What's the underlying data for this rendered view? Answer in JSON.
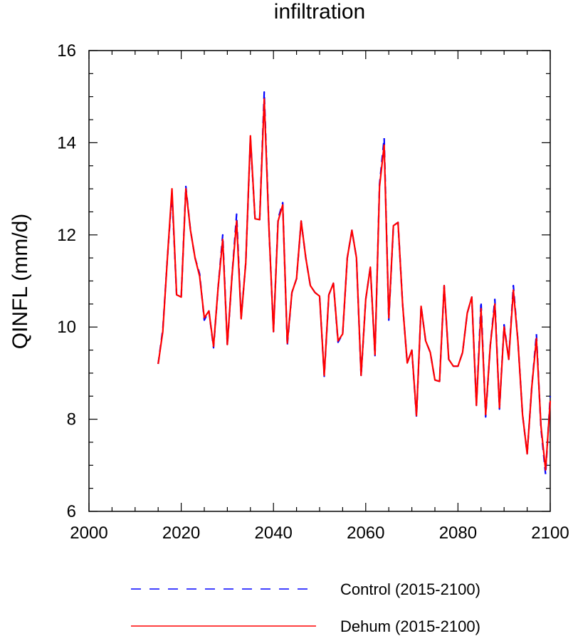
{
  "chart_data": {
    "type": "line",
    "title": "infiltration",
    "xlabel": "",
    "ylabel": "QINFL  (mm/d)",
    "xlim": [
      2000,
      2100
    ],
    "ylim": [
      6,
      16
    ],
    "x_ticks": [
      "2000",
      "2020",
      "2040",
      "2060",
      "2080",
      "2100"
    ],
    "y_ticks": [
      "6",
      "8",
      "10",
      "12",
      "14",
      "16"
    ],
    "x_tick_values": [
      2000,
      2020,
      2040,
      2060,
      2080,
      2100
    ],
    "y_tick_values": [
      6,
      8,
      10,
      12,
      14,
      16
    ],
    "grid": false,
    "legend_position": "bottom",
    "x": [
      2015,
      2016,
      2017,
      2018,
      2019,
      2020,
      2021,
      2022,
      2023,
      2024,
      2025,
      2026,
      2027,
      2028,
      2029,
      2030,
      2031,
      2032,
      2033,
      2034,
      2035,
      2036,
      2037,
      2038,
      2039,
      2040,
      2041,
      2042,
      2043,
      2044,
      2045,
      2046,
      2047,
      2048,
      2049,
      2050,
      2051,
      2052,
      2053,
      2054,
      2055,
      2056,
      2057,
      2058,
      2059,
      2060,
      2061,
      2062,
      2063,
      2064,
      2065,
      2066,
      2067,
      2068,
      2069,
      2070,
      2071,
      2072,
      2073,
      2074,
      2075,
      2076,
      2077,
      2078,
      2079,
      2080,
      2081,
      2082,
      2083,
      2084,
      2085,
      2086,
      2087,
      2088,
      2089,
      2090,
      2091,
      2092,
      2093,
      2094,
      2095,
      2096,
      2097,
      2098,
      2099,
      2100
    ],
    "series": [
      {
        "name": "Control (2015-2100)",
        "color": "#0000ff",
        "style": "dashed",
        "values": [
          9.2,
          9.95,
          11.5,
          12.9,
          10.7,
          10.65,
          13.05,
          12.1,
          11.5,
          11.15,
          10.15,
          10.35,
          9.55,
          10.85,
          12.0,
          9.6,
          11.1,
          12.45,
          10.2,
          11.4,
          14.1,
          12.35,
          12.33,
          15.1,
          12.2,
          9.9,
          12.35,
          12.7,
          9.6,
          10.75,
          11.05,
          12.3,
          11.5,
          10.9,
          10.75,
          10.67,
          8.93,
          10.7,
          10.95,
          9.67,
          9.85,
          11.5,
          12.1,
          11.5,
          8.93,
          10.6,
          11.3,
          9.38,
          13.1,
          14.1,
          10.15,
          12.2,
          12.27,
          10.5,
          9.22,
          9.5,
          8.05,
          10.45,
          9.7,
          9.45,
          8.85,
          8.82,
          10.9,
          9.3,
          9.15,
          9.15,
          9.45,
          10.3,
          10.65,
          8.3,
          10.55,
          8.05,
          9.6,
          10.6,
          8.22,
          10.05,
          9.3,
          10.9,
          9.7,
          8.1,
          7.25,
          8.7,
          9.85,
          7.8,
          6.8,
          8.5
        ]
      },
      {
        "name": "Dehum (2015-2100)",
        "color": "#ff0000",
        "style": "solid",
        "values": [
          9.2,
          9.9,
          11.5,
          13.0,
          10.7,
          10.65,
          13.0,
          12.1,
          11.5,
          11.1,
          10.2,
          10.35,
          9.58,
          10.85,
          11.9,
          9.62,
          11.1,
          12.3,
          10.18,
          11.4,
          14.15,
          12.35,
          12.33,
          14.95,
          12.2,
          9.9,
          12.3,
          12.65,
          9.65,
          10.75,
          11.05,
          12.3,
          11.5,
          10.9,
          10.75,
          10.67,
          8.95,
          10.7,
          10.95,
          9.7,
          9.85,
          11.5,
          12.1,
          11.5,
          8.95,
          10.6,
          11.3,
          9.4,
          13.05,
          13.95,
          10.2,
          12.2,
          12.27,
          10.5,
          9.22,
          9.5,
          8.08,
          10.45,
          9.7,
          9.45,
          8.85,
          8.82,
          10.9,
          9.3,
          9.15,
          9.15,
          9.45,
          10.3,
          10.65,
          8.3,
          10.4,
          8.1,
          9.6,
          10.5,
          8.25,
          10.0,
          9.3,
          10.8,
          9.7,
          8.1,
          7.25,
          8.7,
          9.75,
          7.85,
          6.9,
          8.4
        ]
      }
    ]
  }
}
